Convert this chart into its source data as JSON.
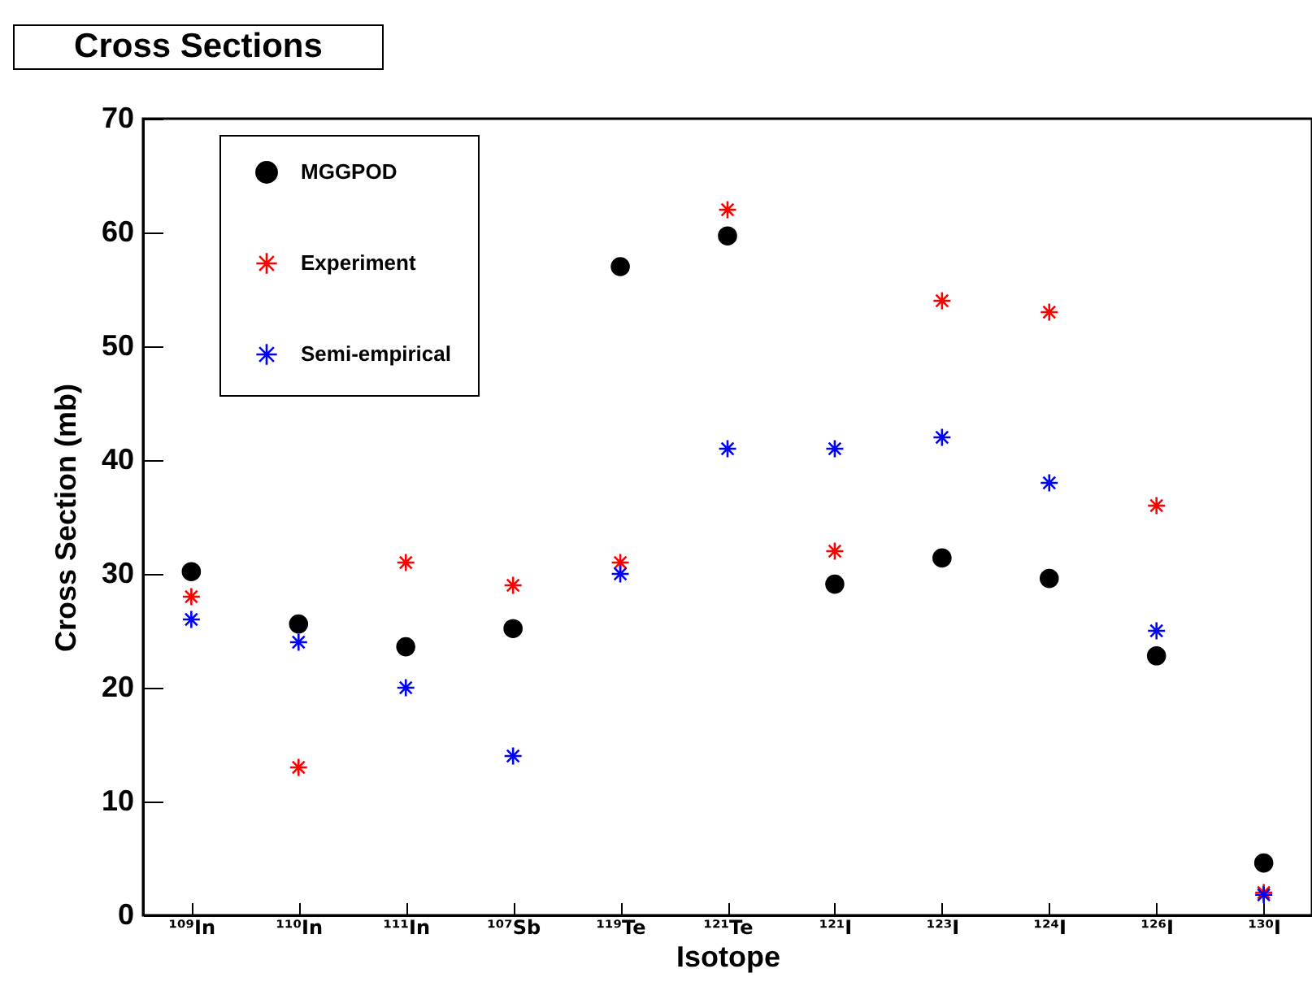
{
  "chart_data": {
    "type": "scatter",
    "title": "Cross Sections",
    "xlabel": "Isotope",
    "ylabel": "Cross Section (mb)",
    "categories": [
      "¹⁰⁹In",
      "¹¹⁰In",
      "¹¹¹In",
      "¹⁰⁷Sb",
      "¹¹⁹Te",
      "¹²¹Te",
      "¹²¹I",
      "¹²³I",
      "¹²⁴I",
      "¹²⁶I",
      "¹³⁰I"
    ],
    "ylim": [
      0,
      70
    ],
    "yticks": [
      0,
      10,
      20,
      30,
      40,
      50,
      60,
      70
    ],
    "grid": false,
    "legend": "top left",
    "series": [
      {
        "name": "MGGPOD",
        "color": "#000000",
        "marker": "circle",
        "values": [
          30.2,
          25.6,
          23.6,
          25.2,
          57,
          59.7,
          29.1,
          31.4,
          29.6,
          22.8,
          4.6
        ]
      },
      {
        "name": "Experiment",
        "color": "#ff0000",
        "marker": "cross",
        "values": [
          28,
          13,
          31,
          29,
          31,
          62,
          32,
          54,
          53,
          36,
          2
        ]
      },
      {
        "name": "Semi-empirical",
        "color": "#0000ff",
        "marker": "cross",
        "values": [
          26,
          24,
          20,
          14,
          30,
          41,
          41,
          42,
          38,
          25,
          1.8
        ]
      }
    ]
  }
}
